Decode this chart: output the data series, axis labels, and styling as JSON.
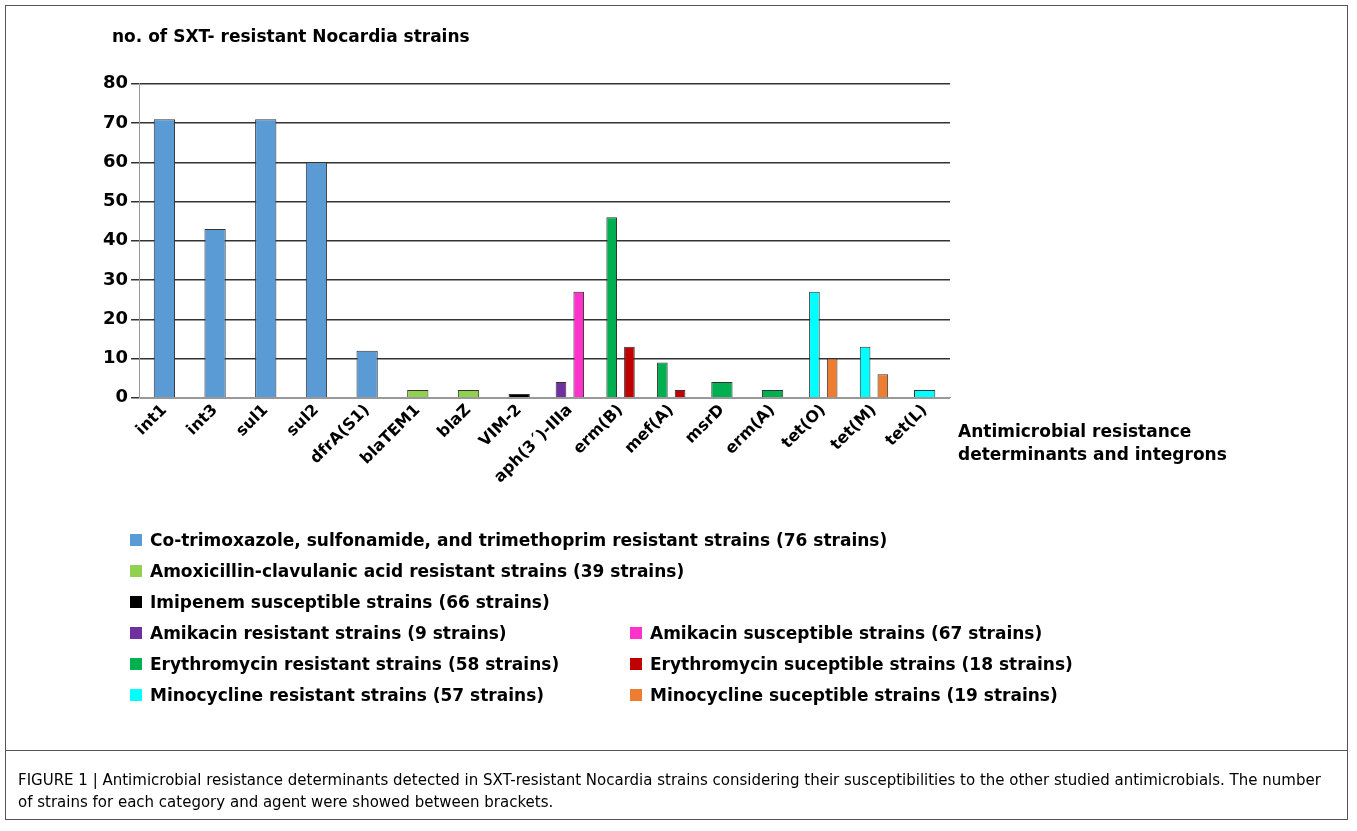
{
  "chart_data": {
    "type": "bar",
    "ylabel": "no. of SXT- resistant Nocardia strains",
    "xlabel": "Antimicrobial resistance determinants and integrons",
    "categories": [
      "int1",
      "int3",
      "sul1",
      "sul2",
      "dfrA(S1)",
      "blaTEM1",
      "blaZ",
      "VIM-2",
      "aph(3´)-IIIa",
      "erm(B)",
      "mef(A)",
      "msrD",
      "erm(A)",
      "tet(O)",
      "tet(M)",
      "tet(L)"
    ],
    "series": [
      {
        "name": "Co-trimoxazole, sulfonamide, and trimethoprim resistant strains (76 strains)",
        "color": "#5b9bd5",
        "values": [
          71,
          43,
          71,
          60,
          12,
          null,
          null,
          null,
          null,
          null,
          null,
          null,
          null,
          null,
          null,
          null
        ]
      },
      {
        "name": "Amoxicillin-clavulanic acid resistant strains (39 strains)",
        "color": "#92d050",
        "values": [
          null,
          null,
          null,
          null,
          null,
          2,
          2,
          null,
          null,
          null,
          null,
          null,
          null,
          null,
          null,
          null
        ]
      },
      {
        "name": "Imipenem susceptible strains (66 strains)",
        "color": "#000000",
        "values": [
          null,
          null,
          null,
          null,
          null,
          null,
          null,
          1,
          null,
          null,
          null,
          null,
          null,
          null,
          null,
          null
        ]
      },
      {
        "name": "Amikacin resistant strains  (9 strains)",
        "color": "#7030a0",
        "values": [
          null,
          null,
          null,
          null,
          null,
          null,
          null,
          null,
          4,
          null,
          null,
          null,
          null,
          null,
          null,
          null
        ]
      },
      {
        "name": "Amikacin susceptible strains (67 strains)",
        "color": "#ff33cc",
        "values": [
          null,
          null,
          null,
          null,
          null,
          null,
          null,
          null,
          27,
          null,
          null,
          null,
          null,
          null,
          null,
          null
        ]
      },
      {
        "name": "Erythromycin resistant strains  (58 strains)",
        "color": "#00b050",
        "values": [
          null,
          null,
          null,
          null,
          null,
          null,
          null,
          null,
          null,
          46,
          9,
          4,
          2,
          null,
          null,
          null
        ]
      },
      {
        "name": "Erythromycin suceptible strains (18 strains)",
        "color": "#c00000",
        "values": [
          null,
          null,
          null,
          null,
          null,
          null,
          null,
          null,
          null,
          13,
          2,
          null,
          null,
          null,
          null,
          null
        ]
      },
      {
        "name": "Minocycline resistant strains (57 strains)",
        "color": "#00ffff",
        "values": [
          null,
          null,
          null,
          null,
          null,
          null,
          null,
          null,
          null,
          null,
          null,
          null,
          null,
          27,
          13,
          2
        ]
      },
      {
        "name": "Minocycline suceptible strains (19 strains)",
        "color": "#ed7d31",
        "values": [
          null,
          null,
          null,
          null,
          null,
          null,
          null,
          null,
          null,
          null,
          null,
          null,
          null,
          10,
          6,
          null
        ]
      }
    ],
    "ylim": [
      0,
      80
    ],
    "yticks": [
      0,
      10,
      20,
      30,
      40,
      50,
      60,
      70,
      80
    ],
    "grid": "y",
    "legend": "bottom",
    "annotations": [
      "FIGURE 1 | Antimicrobial resistance determinants detected in SXT-resistant Nocardia strains considering their susceptibilities to the other studied antimicrobials. The number of strains for each category and agent were showed between brackets."
    ]
  }
}
